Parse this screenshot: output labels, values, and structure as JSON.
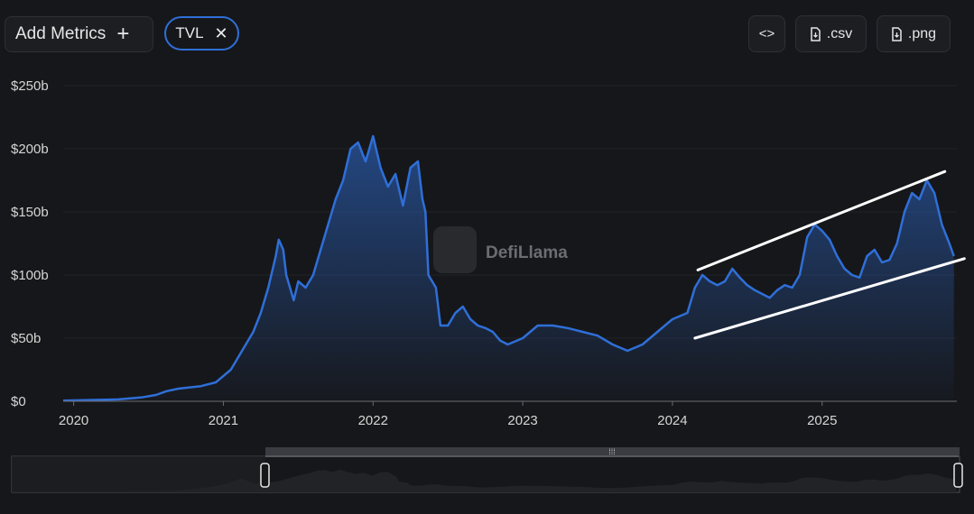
{
  "toolbar": {
    "add_metrics_label": "Add Metrics",
    "add_icon": "+",
    "metric_chip_label": "TVL",
    "close_icon": "✕",
    "embed_icon": "<>",
    "csv_label": ".csv",
    "png_label": ".png"
  },
  "watermark": {
    "text": "DefiLlama"
  },
  "colors": {
    "line": "#2f6fd8",
    "background": "#16171a",
    "trendline": "#ffffff"
  },
  "chart_data": {
    "type": "area",
    "ylim": [
      0,
      250
    ],
    "xlim": [
      2019.93,
      2025.9
    ],
    "y_ticks": [
      {
        "value": 0,
        "label": "$0"
      },
      {
        "value": 50,
        "label": "$50b"
      },
      {
        "value": 100,
        "label": "$100b"
      },
      {
        "value": 150,
        "label": "$150b"
      },
      {
        "value": 200,
        "label": "$200b"
      },
      {
        "value": 250,
        "label": "$250b"
      }
    ],
    "x_ticks": [
      {
        "value": 2020,
        "label": "2020"
      },
      {
        "value": 2021,
        "label": "2021"
      },
      {
        "value": 2022,
        "label": "2022"
      },
      {
        "value": 2023,
        "label": "2023"
      },
      {
        "value": 2024,
        "label": "2024"
      },
      {
        "value": 2025,
        "label": "2025"
      }
    ],
    "series": [
      {
        "values": [
          [
            2019.93,
            0.5
          ],
          [
            2020.1,
            1
          ],
          [
            2020.3,
            1.5
          ],
          [
            2020.45,
            3
          ],
          [
            2020.55,
            5
          ],
          [
            2020.62,
            8
          ],
          [
            2020.7,
            10
          ],
          [
            2020.85,
            12
          ],
          [
            2020.95,
            15
          ],
          [
            2021.05,
            25
          ],
          [
            2021.1,
            35
          ],
          [
            2021.15,
            45
          ],
          [
            2021.2,
            55
          ],
          [
            2021.25,
            70
          ],
          [
            2021.3,
            90
          ],
          [
            2021.35,
            115
          ],
          [
            2021.37,
            128
          ],
          [
            2021.4,
            120
          ],
          [
            2021.42,
            100
          ],
          [
            2021.47,
            80
          ],
          [
            2021.5,
            95
          ],
          [
            2021.55,
            90
          ],
          [
            2021.6,
            100
          ],
          [
            2021.65,
            120
          ],
          [
            2021.7,
            140
          ],
          [
            2021.75,
            160
          ],
          [
            2021.8,
            175
          ],
          [
            2021.85,
            200
          ],
          [
            2021.9,
            205
          ],
          [
            2021.95,
            190
          ],
          [
            2022.0,
            210
          ],
          [
            2022.05,
            185
          ],
          [
            2022.1,
            170
          ],
          [
            2022.15,
            180
          ],
          [
            2022.2,
            155
          ],
          [
            2022.25,
            185
          ],
          [
            2022.3,
            190
          ],
          [
            2022.33,
            160
          ],
          [
            2022.35,
            150
          ],
          [
            2022.37,
            100
          ],
          [
            2022.42,
            90
          ],
          [
            2022.45,
            60
          ],
          [
            2022.5,
            60
          ],
          [
            2022.55,
            70
          ],
          [
            2022.6,
            75
          ],
          [
            2022.65,
            65
          ],
          [
            2022.7,
            60
          ],
          [
            2022.75,
            58
          ],
          [
            2022.8,
            55
          ],
          [
            2022.85,
            48
          ],
          [
            2022.9,
            45
          ],
          [
            2023.0,
            50
          ],
          [
            2023.1,
            60
          ],
          [
            2023.2,
            60
          ],
          [
            2023.3,
            58
          ],
          [
            2023.4,
            55
          ],
          [
            2023.5,
            52
          ],
          [
            2023.6,
            45
          ],
          [
            2023.7,
            40
          ],
          [
            2023.8,
            45
          ],
          [
            2023.9,
            55
          ],
          [
            2024.0,
            65
          ],
          [
            2024.1,
            70
          ],
          [
            2024.15,
            90
          ],
          [
            2024.2,
            100
          ],
          [
            2024.25,
            95
          ],
          [
            2024.3,
            92
          ],
          [
            2024.35,
            95
          ],
          [
            2024.4,
            105
          ],
          [
            2024.45,
            98
          ],
          [
            2024.5,
            92
          ],
          [
            2024.55,
            88
          ],
          [
            2024.6,
            85
          ],
          [
            2024.65,
            82
          ],
          [
            2024.7,
            88
          ],
          [
            2024.75,
            92
          ],
          [
            2024.8,
            90
          ],
          [
            2024.85,
            100
          ],
          [
            2024.9,
            130
          ],
          [
            2024.95,
            140
          ],
          [
            2025.0,
            135
          ],
          [
            2025.05,
            128
          ],
          [
            2025.1,
            115
          ],
          [
            2025.15,
            105
          ],
          [
            2025.2,
            100
          ],
          [
            2025.25,
            98
          ],
          [
            2025.3,
            115
          ],
          [
            2025.35,
            120
          ],
          [
            2025.4,
            110
          ],
          [
            2025.45,
            112
          ],
          [
            2025.5,
            125
          ],
          [
            2025.55,
            150
          ],
          [
            2025.6,
            165
          ],
          [
            2025.65,
            160
          ],
          [
            2025.7,
            175
          ],
          [
            2025.75,
            165
          ],
          [
            2025.8,
            140
          ],
          [
            2025.85,
            125
          ],
          [
            2025.88,
            115
          ]
        ]
      }
    ],
    "annotations": [
      {
        "type": "trendline",
        "from": [
          2024.17,
          104
        ],
        "to": [
          2025.82,
          182
        ]
      },
      {
        "type": "trendline",
        "from": [
          2024.15,
          50
        ],
        "to": [
          2025.95,
          113
        ]
      }
    ]
  }
}
